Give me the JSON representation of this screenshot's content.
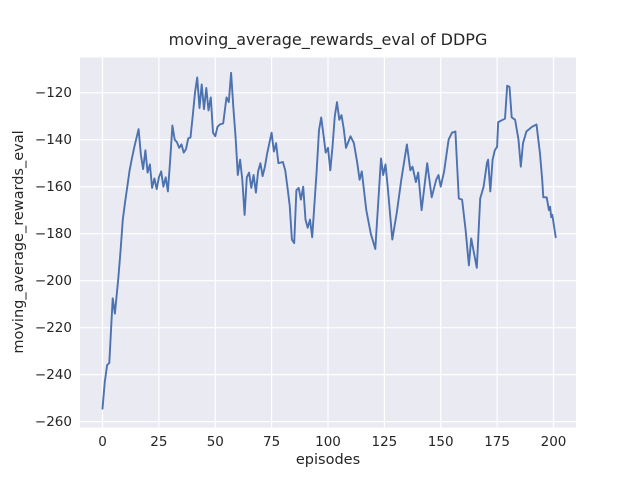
{
  "chart_data": {
    "type": "line",
    "title": "moving_average_rewards_eval of DDPG",
    "xlabel": "episodes",
    "ylabel": "moving_average_rewards_eval",
    "xlim": [
      -10,
      210
    ],
    "ylim": [
      -262.5,
      -105
    ],
    "xticks": [
      0,
      25,
      50,
      75,
      100,
      125,
      150,
      175,
      200
    ],
    "yticks": [
      -120,
      -140,
      -160,
      -180,
      -200,
      -220,
      -240,
      -260
    ],
    "xtick_labels": [
      "0",
      "25",
      "50",
      "75",
      "100",
      "125",
      "150",
      "175",
      "200"
    ],
    "ytick_labels": [
      "−120",
      "−140",
      "−160",
      "−180",
      "−200",
      "−220",
      "−240",
      "−260"
    ],
    "grid": true,
    "legend_position": "none",
    "style": {
      "line_color": "#4C72B0",
      "plot_bg": "#EAEAF2",
      "grid_color": "#FFFFFF",
      "figure_bg": "#FFFFFF",
      "text_color": "#262626"
    },
    "series": [
      {
        "name": "moving_average_rewards_eval",
        "points": [
          [
            0,
            -254.5
          ],
          [
            1,
            -243
          ],
          [
            2,
            -236
          ],
          [
            3,
            -235
          ],
          [
            4.5,
            -207.5
          ],
          [
            5.5,
            -214
          ],
          [
            7,
            -199
          ],
          [
            8,
            -187
          ],
          [
            9,
            -174
          ],
          [
            10,
            -166.5
          ],
          [
            11,
            -160
          ],
          [
            12,
            -153
          ],
          [
            13,
            -148
          ],
          [
            14,
            -143.5
          ],
          [
            16,
            -135.5
          ],
          [
            17,
            -146.5
          ],
          [
            18,
            -152.5
          ],
          [
            19,
            -144.5
          ],
          [
            20,
            -154
          ],
          [
            21,
            -150.5
          ],
          [
            22,
            -160.5
          ],
          [
            23,
            -156.5
          ],
          [
            24,
            -161
          ],
          [
            25,
            -156
          ],
          [
            26,
            -153.5
          ],
          [
            27,
            -160
          ],
          [
            28,
            -156
          ],
          [
            29,
            -162
          ],
          [
            30,
            -148.5
          ],
          [
            31,
            -134
          ],
          [
            32,
            -140
          ],
          [
            33,
            -141
          ],
          [
            34,
            -143.5
          ],
          [
            35,
            -142
          ],
          [
            36,
            -145.5
          ],
          [
            37,
            -144
          ],
          [
            38,
            -139.5
          ],
          [
            39,
            -139
          ],
          [
            40,
            -130
          ],
          [
            41,
            -120
          ],
          [
            42,
            -113.5
          ],
          [
            43,
            -126.5
          ],
          [
            44,
            -116.5
          ],
          [
            45,
            -127
          ],
          [
            46,
            -118
          ],
          [
            47,
            -127.5
          ],
          [
            48,
            -122
          ],
          [
            49,
            -137
          ],
          [
            50,
            -138.5
          ],
          [
            51,
            -134.5
          ],
          [
            52,
            -133.5
          ],
          [
            53.5,
            -133
          ],
          [
            55,
            -122
          ],
          [
            56,
            -124
          ],
          [
            57,
            -111.5
          ],
          [
            58,
            -126
          ],
          [
            59,
            -139
          ],
          [
            60,
            -155
          ],
          [
            61,
            -148.5
          ],
          [
            62,
            -157
          ],
          [
            63,
            -172
          ],
          [
            64,
            -156
          ],
          [
            65,
            -154
          ],
          [
            66,
            -160.5
          ],
          [
            67,
            -155
          ],
          [
            68,
            -162.5
          ],
          [
            69,
            -153.5
          ],
          [
            70,
            -150
          ],
          [
            71,
            -155.5
          ],
          [
            72,
            -151.5
          ],
          [
            73,
            -146
          ],
          [
            75,
            -137
          ],
          [
            76,
            -145
          ],
          [
            77,
            -141.5
          ],
          [
            78,
            -150
          ],
          [
            80,
            -149.5
          ],
          [
            81,
            -153
          ],
          [
            82,
            -160
          ],
          [
            83,
            -168
          ],
          [
            84,
            -182.5
          ],
          [
            85,
            -184
          ],
          [
            86,
            -161.5
          ],
          [
            87,
            -160.5
          ],
          [
            88,
            -165.5
          ],
          [
            89,
            -160
          ],
          [
            90,
            -174
          ],
          [
            91,
            -177.5
          ],
          [
            92,
            -174
          ],
          [
            93,
            -181.5
          ],
          [
            95,
            -153
          ],
          [
            96,
            -136
          ],
          [
            97,
            -130.5
          ],
          [
            98,
            -138
          ],
          [
            99,
            -145.5
          ],
          [
            100,
            -143.5
          ],
          [
            101,
            -153
          ],
          [
            102,
            -143
          ],
          [
            103,
            -130
          ],
          [
            104,
            -124
          ],
          [
            105,
            -131.5
          ],
          [
            106,
            -129.5
          ],
          [
            107,
            -135.5
          ],
          [
            108,
            -143.5
          ],
          [
            110,
            -138.5
          ],
          [
            111.5,
            -141.5
          ],
          [
            113,
            -150
          ],
          [
            114,
            -157
          ],
          [
            115,
            -153.5
          ],
          [
            117,
            -170
          ],
          [
            119,
            -180
          ],
          [
            121,
            -186.5
          ],
          [
            123.5,
            -148
          ],
          [
            124.5,
            -155
          ],
          [
            125.5,
            -150.5
          ],
          [
            126.5,
            -160
          ],
          [
            128.5,
            -182.5
          ],
          [
            130.5,
            -171
          ],
          [
            132.5,
            -157
          ],
          [
            135,
            -142
          ],
          [
            136.5,
            -153
          ],
          [
            137.5,
            -151.5
          ],
          [
            139,
            -158
          ],
          [
            140,
            -154
          ],
          [
            141.5,
            -170
          ],
          [
            144,
            -150
          ],
          [
            146,
            -164.5
          ],
          [
            148,
            -157
          ],
          [
            149,
            -155
          ],
          [
            150,
            -160
          ],
          [
            151.5,
            -153.5
          ],
          [
            153.5,
            -140
          ],
          [
            155,
            -137
          ],
          [
            156.5,
            -136.5
          ],
          [
            158,
            -165
          ],
          [
            159.5,
            -165.5
          ],
          [
            161,
            -178
          ],
          [
            162.5,
            -193.5
          ],
          [
            163.5,
            -182
          ],
          [
            166,
            -194.5
          ],
          [
            167.5,
            -165
          ],
          [
            169,
            -160
          ],
          [
            170.5,
            -150
          ],
          [
            171,
            -148.5
          ],
          [
            172,
            -162
          ],
          [
            173,
            -148.5
          ],
          [
            174,
            -144.5
          ],
          [
            175,
            -143
          ],
          [
            175.5,
            -132.5
          ],
          [
            177.5,
            -131.5
          ],
          [
            178.5,
            -131
          ],
          [
            179.5,
            -117
          ],
          [
            180.5,
            -117.5
          ],
          [
            181.5,
            -130.5
          ],
          [
            183,
            -131.5
          ],
          [
            184.5,
            -140
          ],
          [
            185.5,
            -151.5
          ],
          [
            186.5,
            -141.5
          ],
          [
            188,
            -136.5
          ],
          [
            190.5,
            -134.5
          ],
          [
            192.5,
            -133.5
          ],
          [
            194,
            -145.5
          ],
          [
            195,
            -157
          ],
          [
            195.5,
            -164.5
          ],
          [
            197,
            -164.5
          ],
          [
            198,
            -170
          ],
          [
            198.5,
            -168.5
          ],
          [
            199,
            -173
          ],
          [
            199.5,
            -172
          ],
          [
            201,
            -181.5
          ]
        ]
      }
    ]
  }
}
